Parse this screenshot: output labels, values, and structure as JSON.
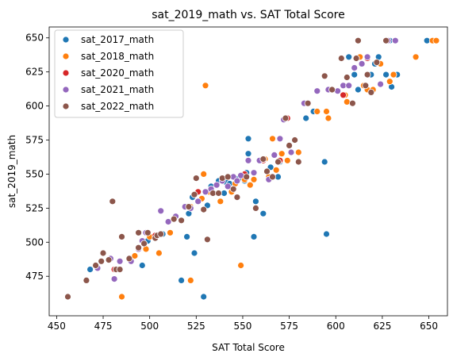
{
  "chart_data": {
    "type": "scatter",
    "title": "sat_2019_math vs. SAT Total Score",
    "xlabel": "SAT Total Score",
    "ylabel": "sat_2019_math",
    "xlim": [
      446,
      660
    ],
    "ylim": [
      446,
      658
    ],
    "xticks": [
      450,
      475,
      500,
      525,
      550,
      575,
      600,
      625,
      650
    ],
    "yticks": [
      475,
      500,
      525,
      550,
      575,
      600,
      625,
      650
    ],
    "grid": false,
    "legend_position": "top-left",
    "series": [
      {
        "name": "sat_2017_math",
        "color": "#1f77b4",
        "points": [
          [
            468,
            480
          ],
          [
            496,
            483
          ],
          [
            499,
            501
          ],
          [
            507,
            506
          ],
          [
            517,
            472
          ],
          [
            520,
            504
          ],
          [
            521,
            521
          ],
          [
            523,
            533
          ],
          [
            524,
            492
          ],
          [
            529,
            460
          ],
          [
            531,
            527
          ],
          [
            533,
            541
          ],
          [
            537,
            545
          ],
          [
            540,
            536
          ],
          [
            541,
            544
          ],
          [
            543,
            543
          ],
          [
            548,
            547
          ],
          [
            551,
            545
          ],
          [
            552,
            551
          ],
          [
            553,
            560
          ],
          [
            553,
            565
          ],
          [
            553,
            576
          ],
          [
            556,
            504
          ],
          [
            557,
            530
          ],
          [
            561,
            521
          ],
          [
            565,
            555
          ],
          [
            569,
            548
          ],
          [
            570,
            559
          ],
          [
            584,
            591
          ],
          [
            588,
            596
          ],
          [
            594,
            559
          ],
          [
            595,
            506
          ],
          [
            603,
            635
          ],
          [
            607,
            636
          ],
          [
            610,
            623
          ],
          [
            612,
            612
          ],
          [
            616,
            615
          ],
          [
            619,
            623
          ],
          [
            621,
            631
          ],
          [
            623,
            636
          ],
          [
            627,
            623
          ],
          [
            629,
            648
          ],
          [
            630,
            614
          ],
          [
            633,
            623
          ],
          [
            649,
            648
          ]
        ]
      },
      {
        "name": "sat_2018_math",
        "color": "#ff7f0e",
        "points": [
          [
            485,
            460
          ],
          [
            492,
            490
          ],
          [
            498,
            495
          ],
          [
            500,
            504
          ],
          [
            505,
            492
          ],
          [
            511,
            507
          ],
          [
            522,
            472
          ],
          [
            522,
            526
          ],
          [
            528,
            532
          ],
          [
            529,
            550
          ],
          [
            530,
            615
          ],
          [
            532,
            537
          ],
          [
            538,
            530
          ],
          [
            544,
            537
          ],
          [
            546,
            543
          ],
          [
            549,
            483
          ],
          [
            551,
            546
          ],
          [
            554,
            542
          ],
          [
            556,
            546
          ],
          [
            562,
            561
          ],
          [
            564,
            548
          ],
          [
            566,
            576
          ],
          [
            568,
            553
          ],
          [
            571,
            565
          ],
          [
            574,
            560
          ],
          [
            580,
            566
          ],
          [
            590,
            596
          ],
          [
            595,
            596
          ],
          [
            596,
            591
          ],
          [
            605,
            608
          ],
          [
            606,
            603
          ],
          [
            613,
            636
          ],
          [
            615,
            615
          ],
          [
            617,
            612
          ],
          [
            620,
            612
          ],
          [
            624,
            631
          ],
          [
            628,
            648
          ],
          [
            629,
            618
          ],
          [
            631,
            623
          ],
          [
            643,
            636
          ],
          [
            652,
            648
          ],
          [
            654,
            648
          ]
        ]
      },
      {
        "name": "sat_2020_math",
        "color": "#d62728",
        "points": [
          [
            481,
            480
          ],
          [
            503,
            505
          ],
          [
            526,
            537
          ],
          [
            551,
            550
          ],
          [
            561,
            560
          ],
          [
            570,
            560
          ],
          [
            574,
            591
          ],
          [
            604,
            608
          ],
          [
            617,
            635
          ],
          [
            628,
            648
          ]
        ]
      },
      {
        "name": "sat_2021_math",
        "color": "#9467bd",
        "points": [
          [
            472,
            481
          ],
          [
            479,
            488
          ],
          [
            481,
            473
          ],
          [
            482,
            480
          ],
          [
            484,
            486
          ],
          [
            490,
            486
          ],
          [
            494,
            495
          ],
          [
            496,
            501
          ],
          [
            498,
            507
          ],
          [
            506,
            523
          ],
          [
            510,
            515
          ],
          [
            514,
            519
          ],
          [
            519,
            526
          ],
          [
            522,
            525
          ],
          [
            526,
            530
          ],
          [
            530,
            537
          ],
          [
            533,
            539
          ],
          [
            536,
            542
          ],
          [
            539,
            545
          ],
          [
            542,
            541
          ],
          [
            545,
            548
          ],
          [
            547,
            545
          ],
          [
            549,
            549
          ],
          [
            553,
            560
          ],
          [
            556,
            551
          ],
          [
            559,
            560
          ],
          [
            561,
            561
          ],
          [
            564,
            546
          ],
          [
            567,
            564
          ],
          [
            570,
            576
          ],
          [
            572,
            590
          ],
          [
            576,
            566
          ],
          [
            583,
            602
          ],
          [
            590,
            611
          ],
          [
            596,
            612
          ],
          [
            601,
            611
          ],
          [
            604,
            615
          ],
          [
            607,
            615
          ],
          [
            610,
            628
          ],
          [
            614,
            631
          ],
          [
            617,
            636
          ],
          [
            624,
            616
          ],
          [
            628,
            648
          ],
          [
            632,
            648
          ]
        ]
      },
      {
        "name": "sat_2022_math",
        "color": "#8c564b",
        "points": [
          [
            456,
            460
          ],
          [
            466,
            472
          ],
          [
            471,
            483
          ],
          [
            474,
            486
          ],
          [
            475,
            492
          ],
          [
            478,
            487
          ],
          [
            480,
            530
          ],
          [
            482,
            480
          ],
          [
            484,
            480
          ],
          [
            485,
            504
          ],
          [
            489,
            488
          ],
          [
            494,
            496
          ],
          [
            494,
            507
          ],
          [
            497,
            499
          ],
          [
            499,
            507
          ],
          [
            503,
            503
          ],
          [
            504,
            505
          ],
          [
            506,
            506
          ],
          [
            513,
            517
          ],
          [
            517,
            516
          ],
          [
            521,
            526
          ],
          [
            524,
            535
          ],
          [
            525,
            547
          ],
          [
            529,
            524
          ],
          [
            531,
            502
          ],
          [
            534,
            536
          ],
          [
            537,
            536
          ],
          [
            539,
            547
          ],
          [
            542,
            548
          ],
          [
            545,
            539
          ],
          [
            547,
            533
          ],
          [
            552,
            548
          ],
          [
            557,
            525
          ],
          [
            561,
            561
          ],
          [
            563,
            552
          ],
          [
            566,
            548
          ],
          [
            569,
            559
          ],
          [
            573,
            591
          ],
          [
            575,
            571
          ],
          [
            578,
            575
          ],
          [
            580,
            559
          ],
          [
            585,
            602
          ],
          [
            594,
            622
          ],
          [
            598,
            612
          ],
          [
            603,
            635
          ],
          [
            606,
            621
          ],
          [
            609,
            602
          ],
          [
            611,
            635
          ],
          [
            612,
            648
          ],
          [
            616,
            615
          ],
          [
            617,
            623
          ],
          [
            619,
            610
          ],
          [
            622,
            632
          ],
          [
            627,
            648
          ]
        ]
      }
    ]
  }
}
